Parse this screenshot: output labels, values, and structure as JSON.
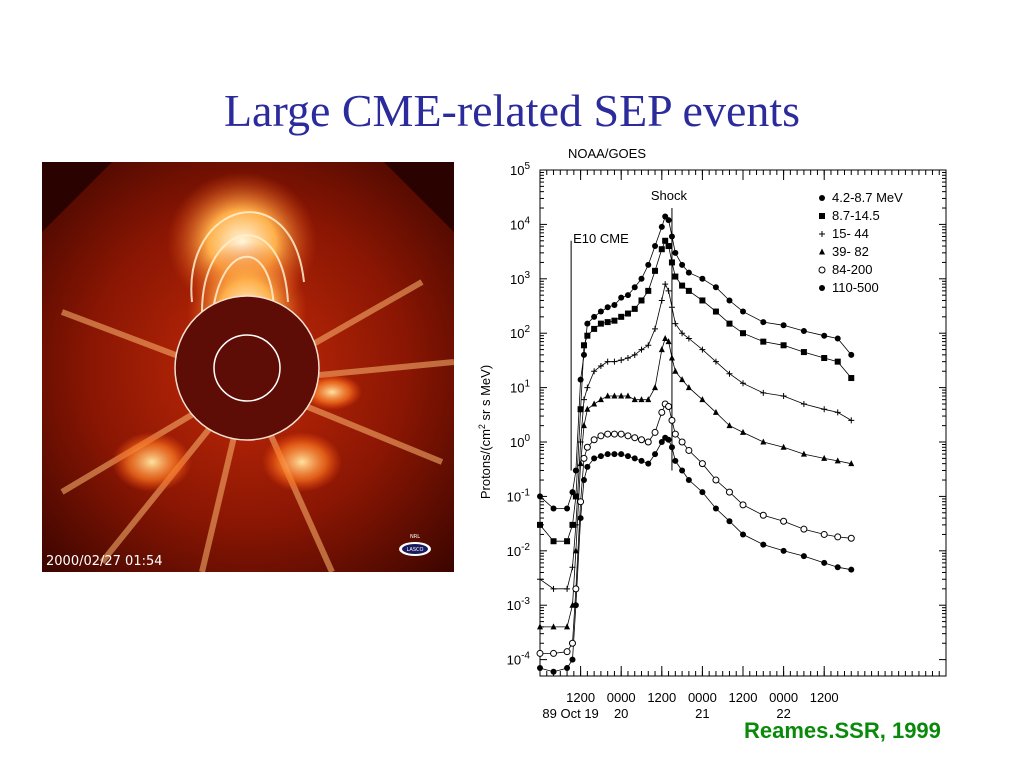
{
  "slide": {
    "title": "Large CME-related SEP events",
    "citation": "Reames.SSR, 1999"
  },
  "image": {
    "timestamp": "2000/02/27 01:54",
    "logo_text": "LASCO",
    "logo_sub": "NRL",
    "colors": {
      "background": "#5a0800",
      "flare": "#ff9a30",
      "disk": "#5e0c06"
    }
  },
  "chart_data": {
    "type": "scatter",
    "title": "NOAA/GOES",
    "ylabel_parts": [
      "Protons/(cm",
      "2",
      " sr s MeV)"
    ],
    "yscale": "log",
    "ylim": [
      5e-05,
      100000
    ],
    "xlim": [
      0,
      60
    ],
    "ytick_exponents": [
      -4,
      -3,
      -2,
      -1,
      0,
      1,
      2,
      3,
      4,
      5
    ],
    "xticks": [
      {
        "x": 6,
        "label": "1200",
        "sub": "89 Oct 19"
      },
      {
        "x": 12,
        "label": "0000",
        "sub": "20"
      },
      {
        "x": 18,
        "label": "1200",
        "sub": ""
      },
      {
        "x": 24,
        "label": "0000",
        "sub": "21"
      },
      {
        "x": 30,
        "label": "1200",
        "sub": ""
      },
      {
        "x": 36,
        "label": "0000",
        "sub": "22"
      },
      {
        "x": 42,
        "label": "1200",
        "sub": ""
      }
    ],
    "annotations": [
      {
        "label": "E10 CME",
        "x": 4.6
      },
      {
        "label": "Shock",
        "x": 19.5
      }
    ],
    "legend_position": "top-right",
    "series": [
      {
        "name": "4.2-8.7 MeV",
        "marker": "filled-circle",
        "x": [
          0,
          2,
          4,
          4.8,
          5.3,
          6,
          6.5,
          7,
          8,
          9,
          10,
          11,
          12,
          13,
          14,
          15,
          16,
          17,
          18,
          18.5,
          19,
          19.5,
          20,
          21,
          22,
          24,
          26,
          28,
          30,
          33,
          36,
          39,
          42,
          44,
          46
        ],
        "y": [
          0.1,
          0.06,
          0.06,
          0.12,
          0.3,
          14,
          40,
          150,
          200,
          250,
          300,
          330,
          450,
          500,
          700,
          1000,
          1800,
          4000,
          9000,
          14000,
          12000,
          6000,
          3000,
          1800,
          1300,
          1000,
          700,
          400,
          250,
          160,
          140,
          110,
          90,
          80,
          40
        ]
      },
      {
        "name": "8.7-14.5",
        "marker": "filled-square",
        "x": [
          0,
          2,
          4,
          4.8,
          5.3,
          6,
          6.5,
          7,
          8,
          9,
          10,
          11,
          12,
          13,
          14,
          15,
          16,
          17,
          18,
          18.5,
          19,
          19.5,
          20,
          21,
          22,
          24,
          26,
          28,
          30,
          33,
          36,
          39,
          42,
          44,
          46
        ],
        "y": [
          0.03,
          0.015,
          0.015,
          0.03,
          0.1,
          4,
          60,
          90,
          120,
          150,
          160,
          170,
          200,
          230,
          280,
          400,
          600,
          1400,
          3500,
          5000,
          4000,
          2000,
          1100,
          750,
          600,
          400,
          250,
          150,
          100,
          70,
          60,
          45,
          35,
          30,
          15
        ]
      },
      {
        "name": "15- 44",
        "marker": "plus",
        "x": [
          0,
          2,
          4,
          4.8,
          5.3,
          6,
          6.5,
          7,
          8,
          9,
          10,
          11,
          12,
          13,
          14,
          15,
          16,
          17,
          18,
          18.5,
          19,
          19.5,
          20,
          21,
          22,
          24,
          26,
          28,
          30,
          33,
          36,
          39,
          42,
          44,
          46
        ],
        "y": [
          0.003,
          0.002,
          0.002,
          0.005,
          0.03,
          1,
          6,
          10,
          20,
          25,
          30,
          30,
          32,
          35,
          40,
          50,
          60,
          120,
          400,
          800,
          600,
          300,
          150,
          100,
          80,
          50,
          30,
          18,
          12,
          8,
          7,
          5,
          4,
          3.5,
          2.5
        ]
      },
      {
        "name": "39- 82",
        "marker": "filled-triangle",
        "x": [
          0,
          2,
          4,
          4.8,
          5.3,
          6,
          6.5,
          7,
          8,
          9,
          10,
          11,
          12,
          13,
          14,
          15,
          16,
          17,
          18,
          18.5,
          19,
          19.5,
          20,
          21,
          22,
          24,
          26,
          28,
          30,
          33,
          36,
          39,
          42,
          44,
          46
        ],
        "y": [
          0.0004,
          0.0004,
          0.0004,
          0.001,
          0.01,
          0.4,
          2,
          4,
          5,
          6,
          7,
          7,
          7,
          7,
          6,
          6,
          6,
          10,
          50,
          80,
          70,
          35,
          20,
          14,
          10,
          6,
          3.5,
          2,
          1.5,
          1,
          0.8,
          0.6,
          0.5,
          0.45,
          0.4
        ]
      },
      {
        "name": "84-200",
        "marker": "open-circle",
        "x": [
          0,
          2,
          4,
          4.8,
          5.3,
          6,
          6.5,
          7,
          8,
          9,
          10,
          11,
          12,
          13,
          14,
          15,
          16,
          17,
          18,
          18.5,
          19,
          19.5,
          20,
          21,
          22,
          24,
          26,
          28,
          30,
          33,
          36,
          39,
          42,
          44,
          46
        ],
        "y": [
          0.00013,
          0.00013,
          0.00014,
          0.0002,
          0.002,
          0.08,
          0.5,
          0.8,
          1.1,
          1.3,
          1.4,
          1.4,
          1.4,
          1.3,
          1.2,
          1.1,
          1.0,
          1.5,
          3.5,
          5,
          4.5,
          2.5,
          1.4,
          1,
          0.7,
          0.4,
          0.2,
          0.12,
          0.07,
          0.045,
          0.035,
          0.025,
          0.02,
          0.018,
          0.017
        ]
      },
      {
        "name": "110-500",
        "marker": "filled-circle",
        "x": [
          0,
          2,
          4,
          4.8,
          5.3,
          6,
          6.5,
          7,
          8,
          9,
          10,
          11,
          12,
          13,
          14,
          15,
          16,
          17,
          18,
          18.5,
          19,
          19.5,
          20,
          21,
          22,
          24,
          26,
          28,
          30,
          33,
          36,
          39,
          42,
          44,
          46
        ],
        "y": [
          7e-05,
          6e-05,
          7e-05,
          0.0001,
          0.001,
          0.04,
          0.2,
          0.35,
          0.5,
          0.55,
          0.6,
          0.6,
          0.6,
          0.55,
          0.5,
          0.45,
          0.4,
          0.6,
          1,
          1.2,
          1.1,
          0.8,
          0.45,
          0.3,
          0.2,
          0.12,
          0.06,
          0.035,
          0.02,
          0.013,
          0.01,
          0.008,
          0.006,
          0.005,
          0.0045
        ]
      }
    ]
  }
}
